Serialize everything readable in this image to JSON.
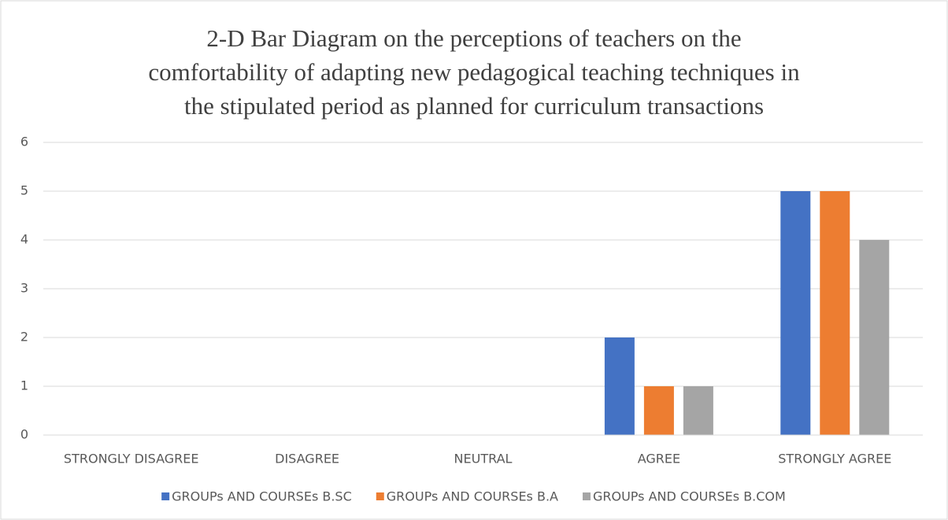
{
  "chart_data": {
    "type": "bar",
    "title": [
      "2-D Bar Diagram on the perceptions of teachers on the",
      "comfortability of adapting new pedagogical teaching techniques in",
      "the stipulated period as planned for curriculum transactions"
    ],
    "categories": [
      "STRONGLY DISAGREE",
      "DISAGREE",
      "NEUTRAL",
      "AGREE",
      "STRONGLY AGREE"
    ],
    "series": [
      {
        "name": "GROUPs AND COURSEs B.SC",
        "color": "#4472c4",
        "values": [
          0,
          0,
          0,
          2,
          5
        ]
      },
      {
        "name": "GROUPs AND COURSEs B.A",
        "color": "#ed7d31",
        "values": [
          0,
          0,
          0,
          1,
          5
        ]
      },
      {
        "name": "GROUPs AND COURSEs B.COM",
        "color": "#a5a5a5",
        "values": [
          0,
          0,
          0,
          1,
          4
        ]
      }
    ],
    "ylim": [
      0,
      6
    ],
    "yticks": [
      0,
      1,
      2,
      3,
      4,
      5,
      6
    ],
    "grid": true,
    "legend": "bottom"
  }
}
